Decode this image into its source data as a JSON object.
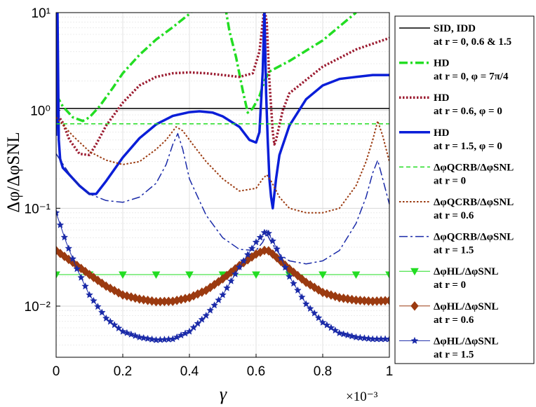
{
  "chart_data": {
    "type": "line",
    "yscale": "log",
    "xlabel": "γ",
    "ylabel": "Δφ/ΔφSNL",
    "xlim": [
      0,
      1
    ],
    "ylim": [
      0.003,
      10
    ],
    "x_multiplier": "×10⁻³",
    "x_ticks": [
      0,
      0.2,
      0.4,
      0.6,
      0.8,
      1
    ],
    "x_tick_labels": [
      "0",
      "0.2",
      "0.4",
      "0.6",
      "0.8",
      "1"
    ],
    "y_ticks": [
      0.01,
      0.1,
      1,
      10
    ],
    "y_tick_labels": [
      "10⁻²",
      "10⁻¹",
      "10⁰",
      "10¹"
    ],
    "series": [
      {
        "name": "SID, IDD",
        "name2": "at r = 0, 0.6 & 1.5",
        "color": "#000000",
        "style": "solid",
        "width": 1.5,
        "x": [
          0,
          1
        ],
        "y": [
          1.05,
          1.05
        ]
      },
      {
        "name": "HD",
        "name2": "at r = 0, φ = 7π/4",
        "color": "#22dd22",
        "style": "dashdot",
        "width": 3.5,
        "x": [
          0,
          0.02,
          0.05,
          0.08,
          0.1,
          0.13,
          0.17,
          0.2,
          0.25,
          0.3,
          0.35,
          0.4,
          0.41,
          0.42,
          0.5,
          0.51,
          0.52,
          0.54,
          0.56,
          0.575,
          0.59,
          0.61,
          0.625,
          0.64,
          0.7,
          0.8,
          0.9
        ],
        "y": [
          1.45,
          1.1,
          0.85,
          0.78,
          0.85,
          1.1,
          1.7,
          2.4,
          3.7,
          5.3,
          7.1,
          9.7,
          10.5,
          11,
          11,
          10.2,
          6.5,
          3.5,
          1.6,
          0.95,
          1.05,
          1.4,
          2,
          2.5,
          3.2,
          5.2,
          10
        ]
      },
      {
        "name": "HD",
        "name2": "at r = 0.6, φ = 0",
        "color": "#9b1b30",
        "style": "dotted",
        "width": 3.5,
        "x": [
          0,
          0.02,
          0.04,
          0.07,
          0.1,
          0.12,
          0.15,
          0.2,
          0.25,
          0.3,
          0.35,
          0.4,
          0.45,
          0.5,
          0.55,
          0.59,
          0.61,
          0.62,
          0.625,
          0.632,
          0.64,
          0.65,
          0.655,
          0.66,
          0.68,
          0.7,
          0.8,
          0.9,
          1
        ],
        "y": [
          0.95,
          0.75,
          0.5,
          0.36,
          0.35,
          0.45,
          0.7,
          1.2,
          1.8,
          2.2,
          2.4,
          2.45,
          2.4,
          2.3,
          2.2,
          2.4,
          4,
          8,
          11,
          8,
          2,
          0.6,
          0.45,
          0.5,
          1.0,
          1.5,
          2.8,
          4.2,
          5.5
        ]
      },
      {
        "name": "HD",
        "name2": "at r = 1.5, φ = 0",
        "color": "#0a1ed8",
        "style": "solid",
        "width": 3.5,
        "x": [
          0,
          0.004,
          0.008,
          0.012,
          0.02,
          0.04,
          0.07,
          0.1,
          0.12,
          0.15,
          0.2,
          0.25,
          0.3,
          0.35,
          0.4,
          0.43,
          0.47,
          0.5,
          0.55,
          0.58,
          0.6,
          0.61,
          0.62,
          0.625,
          0.63,
          0.635,
          0.64,
          0.645,
          0.65,
          0.66,
          0.67,
          0.7,
          0.75,
          0.8,
          0.85,
          0.9,
          0.95,
          1
        ],
        "y": [
          0.55,
          11,
          0.5,
          0.32,
          0.26,
          0.22,
          0.17,
          0.14,
          0.14,
          0.19,
          0.33,
          0.52,
          0.72,
          0.88,
          0.96,
          0.98,
          0.95,
          0.87,
          0.68,
          0.5,
          0.47,
          0.6,
          2.5,
          11,
          1.5,
          0.5,
          0.2,
          0.13,
          0.1,
          0.2,
          0.35,
          0.7,
          1.3,
          1.8,
          2.1,
          2.2,
          2.3,
          2.3
        ]
      },
      {
        "name": "ΔφQCRB/ΔφSNL",
        "name2": "at r = 0",
        "color": "#22dd22",
        "style": "dashed",
        "width": 1.5,
        "x": [
          0,
          1
        ],
        "y": [
          0.73,
          0.73
        ]
      },
      {
        "name": "ΔφQCRB/ΔφSNL",
        "name2": "at r = 0.6",
        "color": "#9b3a10",
        "style": "dotted",
        "width": 2,
        "x": [
          0,
          0.05,
          0.1,
          0.15,
          0.2,
          0.25,
          0.3,
          0.33,
          0.36,
          0.38,
          0.41,
          0.45,
          0.5,
          0.55,
          0.6,
          0.62,
          0.632,
          0.645,
          0.67,
          0.7,
          0.75,
          0.8,
          0.85,
          0.9,
          0.93,
          0.95,
          0.965,
          0.98,
          1
        ],
        "y": [
          0.85,
          0.55,
          0.38,
          0.31,
          0.28,
          0.3,
          0.4,
          0.5,
          0.68,
          0.62,
          0.45,
          0.3,
          0.2,
          0.15,
          0.16,
          0.2,
          0.22,
          0.19,
          0.13,
          0.1,
          0.09,
          0.09,
          0.1,
          0.17,
          0.3,
          0.5,
          0.78,
          0.55,
          0.3
        ]
      },
      {
        "name": "ΔφQCRB/ΔφSNL",
        "name2": "at r = 1.5",
        "color": "#1a2aa8",
        "style": "dashdot",
        "width": 1.5,
        "x": [
          0,
          0.05,
          0.1,
          0.15,
          0.2,
          0.25,
          0.3,
          0.33,
          0.35,
          0.365,
          0.38,
          0.4,
          0.45,
          0.5,
          0.55,
          0.6,
          0.62,
          0.632,
          0.645,
          0.67,
          0.7,
          0.75,
          0.8,
          0.85,
          0.9,
          0.93,
          0.95,
          0.965,
          0.98,
          1
        ],
        "y": [
          0.36,
          0.2,
          0.14,
          0.12,
          0.115,
          0.13,
          0.18,
          0.28,
          0.45,
          0.58,
          0.4,
          0.2,
          0.085,
          0.05,
          0.038,
          0.037,
          0.045,
          0.055,
          0.045,
          0.034,
          0.029,
          0.027,
          0.029,
          0.037,
          0.07,
          0.13,
          0.23,
          0.31,
          0.2,
          0.11
        ]
      },
      {
        "name": "ΔφHL/ΔφSNL",
        "name2": "at r = 0",
        "color": "#22dd22",
        "style": "solid",
        "width": 1,
        "marker": "triangle",
        "x": [
          0,
          1
        ],
        "y": [
          0.021,
          0.021
        ]
      },
      {
        "name": "ΔφHL/ΔφSNL",
        "name2": "at r = 0.6",
        "color": "#9b3a10",
        "style": "solid",
        "width": 1,
        "marker": "diamond",
        "x": [
          0,
          0.05,
          0.1,
          0.15,
          0.2,
          0.25,
          0.3,
          0.35,
          0.4,
          0.45,
          0.5,
          0.55,
          0.6,
          0.632,
          0.65,
          0.7,
          0.75,
          0.8,
          0.85,
          0.9,
          0.95,
          1
        ],
        "y": [
          0.037,
          0.028,
          0.021,
          0.016,
          0.013,
          0.0118,
          0.0111,
          0.0112,
          0.0122,
          0.0145,
          0.019,
          0.026,
          0.034,
          0.038,
          0.034,
          0.024,
          0.0175,
          0.0138,
          0.0122,
          0.0115,
          0.0112,
          0.0114
        ]
      },
      {
        "name": "ΔφHL/ΔφSNL",
        "name2": "at r = 1.5",
        "color": "#1a2aa8",
        "style": "solid",
        "width": 1,
        "marker": "star",
        "x": [
          0,
          0.03,
          0.06,
          0.1,
          0.15,
          0.2,
          0.25,
          0.3,
          0.35,
          0.4,
          0.45,
          0.5,
          0.55,
          0.6,
          0.632,
          0.66,
          0.7,
          0.75,
          0.8,
          0.85,
          0.9,
          0.95,
          1
        ],
        "y": [
          0.09,
          0.045,
          0.025,
          0.013,
          0.0075,
          0.0055,
          0.0048,
          0.0045,
          0.0046,
          0.0055,
          0.008,
          0.013,
          0.025,
          0.045,
          0.06,
          0.04,
          0.02,
          0.0105,
          0.0068,
          0.0053,
          0.0048,
          0.0046,
          0.0046
        ]
      }
    ]
  }
}
